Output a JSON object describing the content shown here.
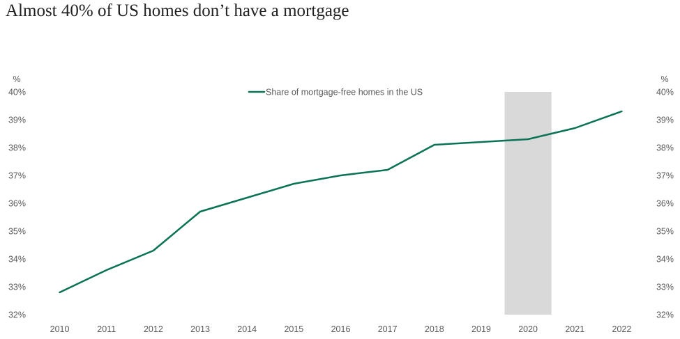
{
  "chart_data": {
    "type": "line",
    "title": "Almost 40% of US homes don’t have a mortgage",
    "x": [
      2010,
      2011,
      2012,
      2013,
      2014,
      2015,
      2016,
      2017,
      2018,
      2019,
      2020,
      2021,
      2022
    ],
    "series": [
      {
        "name": "Share of mortgage-free homes in the US",
        "color": "#0b7355",
        "values": [
          32.8,
          33.6,
          34.3,
          35.7,
          36.2,
          36.7,
          37.0,
          37.2,
          38.1,
          38.2,
          38.3,
          38.7,
          39.3
        ]
      }
    ],
    "ylim": [
      32,
      40
    ],
    "yticks": [
      32,
      33,
      34,
      35,
      36,
      37,
      38,
      39,
      40
    ],
    "ytick_suffix": "%",
    "left_unit_label": "%",
    "right_unit_label": "%",
    "shaded_region": {
      "x_start": 2019.5,
      "x_end": 2020.5,
      "color": "#d9d9d9"
    },
    "legend_position": "top-center",
    "grid": false
  }
}
